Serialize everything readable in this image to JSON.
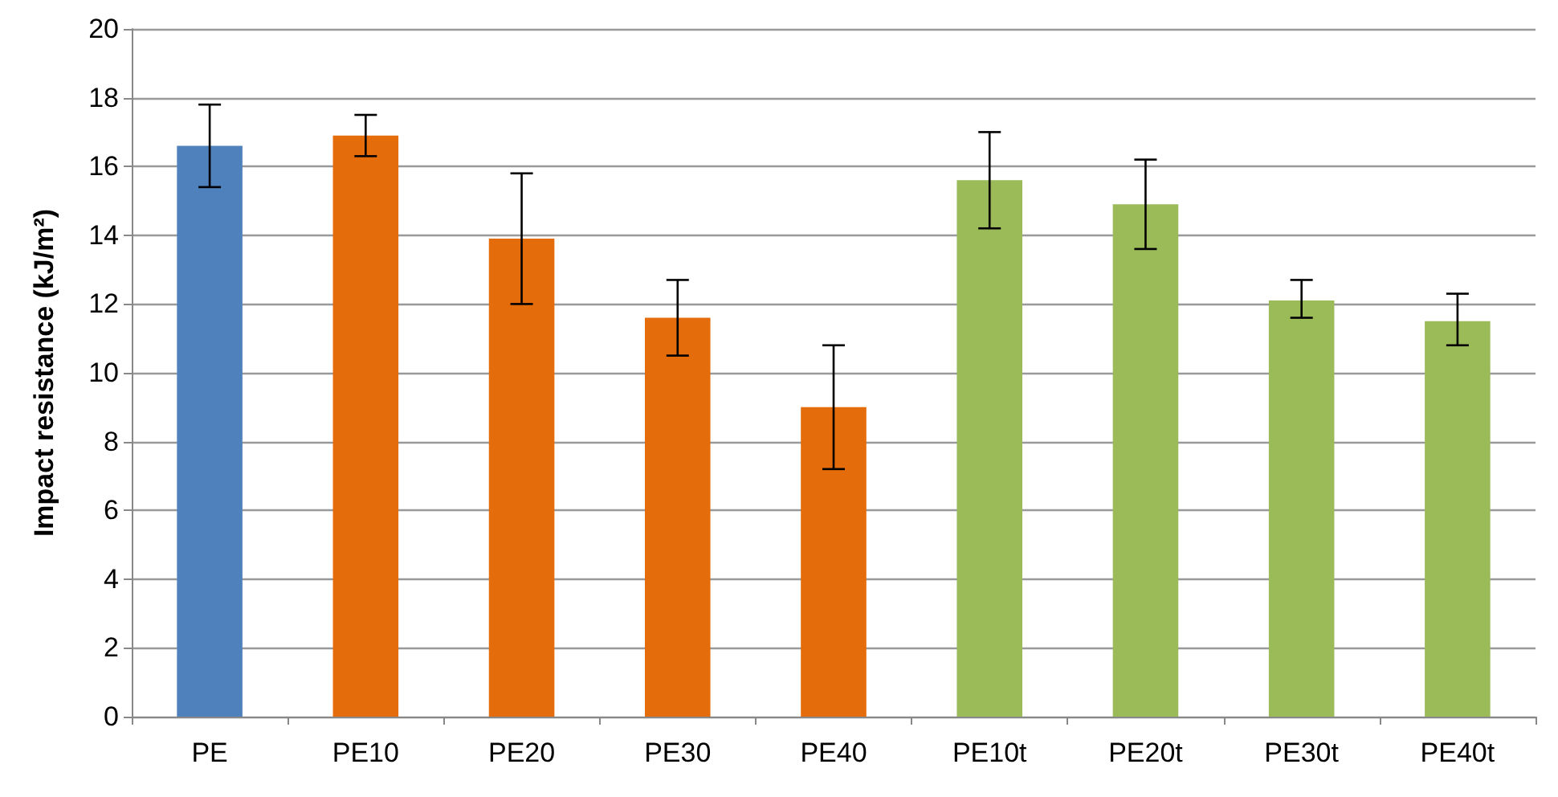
{
  "chart_data": {
    "type": "bar",
    "ylabel": "Impact resistance (kJ/m²)",
    "categories": [
      "PE",
      "PE10",
      "PE20",
      "PE30",
      "PE40",
      "PE10t",
      "PE20t",
      "PE30t",
      "PE40t"
    ],
    "values": [
      16.6,
      16.9,
      13.9,
      11.6,
      9.0,
      15.6,
      14.9,
      12.1,
      11.5
    ],
    "colors": [
      "#4f81bd",
      "#e46c0a",
      "#e46c0a",
      "#e46c0a",
      "#e46c0a",
      "#9bbb59",
      "#9bbb59",
      "#9bbb59",
      "#9bbb59"
    ],
    "errors": [
      [
        15.4,
        17.8
      ],
      [
        16.3,
        17.5
      ],
      [
        12.0,
        15.8
      ],
      [
        10.5,
        12.7
      ],
      [
        7.2,
        10.8
      ],
      [
        14.2,
        17.0
      ],
      [
        13.6,
        16.2
      ],
      [
        11.6,
        12.7
      ],
      [
        10.8,
        12.3
      ]
    ],
    "ylim": [
      0,
      20
    ],
    "yticks": [
      0,
      2,
      4,
      6,
      8,
      10,
      12,
      14,
      16,
      18,
      20
    ],
    "grid": "y"
  }
}
